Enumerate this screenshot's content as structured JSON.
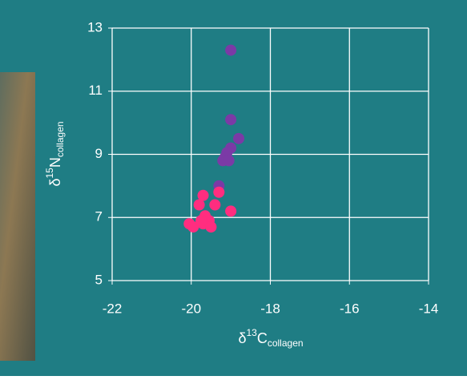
{
  "chart_data": {
    "type": "scatter",
    "x_label": {
      "symbol": "δ",
      "sup": "13",
      "main": "C",
      "sub": "collagen"
    },
    "y_label": {
      "symbol": "δ",
      "sup": "15",
      "main": "N",
      "sub": "collagen"
    },
    "xlim": [
      -22,
      -14
    ],
    "xticks": [
      -22,
      -20,
      -18,
      -16,
      -14
    ],
    "ylim": [
      5,
      13
    ],
    "yticks": [
      5,
      7,
      9,
      11,
      13
    ],
    "grid": true,
    "series": [
      {
        "color": "#7b3aa6",
        "x": [
          -19.0,
          -19.0,
          -18.8,
          -19.0,
          -19.1,
          -19.15,
          -19.2,
          -19.05,
          -19.3
        ],
        "values": [
          12.3,
          10.1,
          9.5,
          9.2,
          9.05,
          8.9,
          8.8,
          8.8,
          8.0
        ]
      },
      {
        "color": "#ff2d7f",
        "x": [
          -19.0,
          -19.3,
          -19.7,
          -19.8,
          -19.4,
          -19.65,
          -19.55,
          -19.7,
          -19.5,
          -20.05,
          -19.95,
          -19.75
        ],
        "values": [
          7.2,
          7.8,
          7.7,
          7.4,
          7.4,
          7.05,
          6.9,
          6.8,
          6.7,
          6.8,
          6.7,
          6.9
        ]
      }
    ]
  }
}
